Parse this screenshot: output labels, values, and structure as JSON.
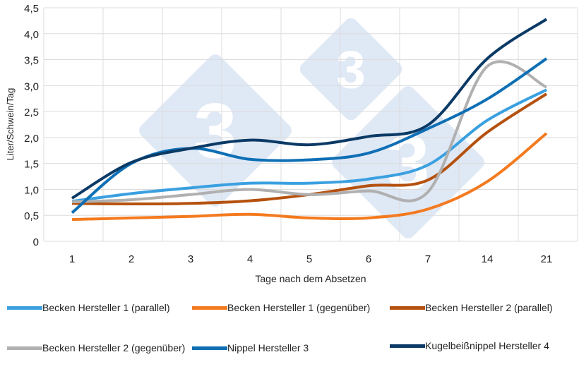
{
  "chart_data": {
    "type": "line",
    "title": "",
    "xlabel": "Tage nach dem Absetzen",
    "ylabel": "Liter/Schwein/Tag",
    "categories": [
      "1",
      "2",
      "3",
      "4",
      "5",
      "6",
      "7",
      "14",
      "21"
    ],
    "ylim": [
      0,
      4.5
    ],
    "yticks": [
      "0",
      "0,5",
      "1,0",
      "1,5",
      "2,0",
      "2,5",
      "3,0",
      "3,5",
      "4,0",
      "4,5"
    ],
    "grid": true,
    "smooth": true,
    "legend_position": "bottom",
    "series": [
      {
        "name": "Becken Hersteller 1 (parallel)",
        "color": "#3aa0e0",
        "values": [
          0.77,
          0.92,
          1.03,
          1.12,
          1.12,
          1.2,
          1.47,
          2.33,
          2.92
        ]
      },
      {
        "name": "Becken Hersteller 1 (gegenüber)",
        "color": "#f47a1f",
        "values": [
          0.42,
          0.45,
          0.48,
          0.52,
          0.45,
          0.45,
          0.62,
          1.15,
          2.08
        ]
      },
      {
        "name": "Becken Hersteller 2 (parallel)",
        "color": "#b5510f",
        "values": [
          0.73,
          0.72,
          0.73,
          0.78,
          0.9,
          1.07,
          1.18,
          2.1,
          2.84
        ]
      },
      {
        "name": "Becken Hersteller 2 (gegenüber)",
        "color": "#b0b0b0",
        "values": [
          0.76,
          0.8,
          0.9,
          1.0,
          0.9,
          0.97,
          0.95,
          3.37,
          2.97
        ]
      },
      {
        "name": "Nippel Hersteller 3",
        "color": "#0e6fb5",
        "values": [
          0.55,
          1.5,
          1.79,
          1.58,
          1.57,
          1.7,
          2.17,
          2.74,
          3.52
        ]
      },
      {
        "name": "Kugelbeißnippel Hersteller 4",
        "color": "#0b3a66",
        "values": [
          0.83,
          1.52,
          1.79,
          1.95,
          1.86,
          2.02,
          2.24,
          3.52,
          4.28
        ]
      }
    ],
    "watermark": "3"
  }
}
